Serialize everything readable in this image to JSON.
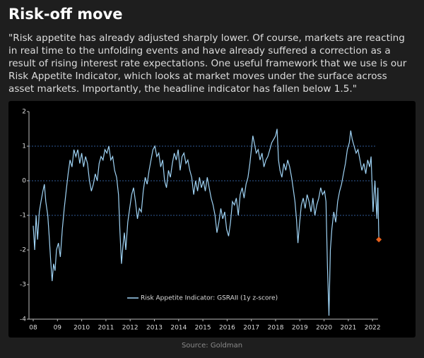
{
  "header": {
    "title": "Risk-off move"
  },
  "paragraph": [
    "\"Risk appetite has already adjusted sharply lower. Of course, markets are reacting",
    "in real time to the unfolding events and have already suffered a correction as a",
    "result of rising interest rate expectations. One useful framework that we use is our",
    "Risk Appetite Indicator, which looks at market moves under the surface across",
    "asset markets. Importantly, the headline indicator has fallen below 1.5.\""
  ],
  "source": "Source: Goldman",
  "chart_data": {
    "type": "line",
    "xlim": [
      2008,
      2023
    ],
    "ylim": [
      -4,
      2
    ],
    "xticks": [
      {
        "value": 2008,
        "label": "08"
      },
      {
        "value": 2009,
        "label": "09"
      },
      2010,
      2011,
      2012,
      2013,
      2014,
      2015,
      2016,
      2017,
      2018,
      2019,
      2020,
      2021,
      2022
    ],
    "yticks": [
      -4,
      -3,
      -2,
      -1,
      0,
      1,
      2
    ],
    "dashed_lines": [
      1,
      0,
      -1
    ],
    "series": [
      {
        "name": "Risk Appetite Indicator: GSRAII (1y z-score)",
        "color": "#9fd3f5",
        "marker_color": "#e8601c",
        "x": [
          2008.0,
          2008.06,
          2008.12,
          2008.18,
          2008.25,
          2008.32,
          2008.4,
          2008.46,
          2008.52,
          2008.6,
          2008.66,
          2008.72,
          2008.78,
          2008.84,
          2008.9,
          2008.96,
          2009.04,
          2009.12,
          2009.2,
          2009.28,
          2009.36,
          2009.44,
          2009.52,
          2009.6,
          2009.68,
          2009.76,
          2009.84,
          2009.92,
          2010.0,
          2010.08,
          2010.16,
          2010.24,
          2010.32,
          2010.4,
          2010.48,
          2010.56,
          2010.64,
          2010.72,
          2010.8,
          2010.88,
          2010.96,
          2011.04,
          2011.12,
          2011.2,
          2011.28,
          2011.36,
          2011.44,
          2011.52,
          2011.58,
          2011.64,
          2011.7,
          2011.76,
          2011.82,
          2011.9,
          2011.98,
          2012.06,
          2012.14,
          2012.22,
          2012.3,
          2012.38,
          2012.46,
          2012.54,
          2012.62,
          2012.7,
          2012.78,
          2012.86,
          2012.94,
          2013.02,
          2013.1,
          2013.18,
          2013.26,
          2013.34,
          2013.42,
          2013.5,
          2013.58,
          2013.66,
          2013.74,
          2013.82,
          2013.9,
          2013.98,
          2014.06,
          2014.14,
          2014.22,
          2014.3,
          2014.38,
          2014.46,
          2014.54,
          2014.62,
          2014.7,
          2014.78,
          2014.86,
          2014.94,
          2015.02,
          2015.1,
          2015.18,
          2015.26,
          2015.34,
          2015.42,
          2015.5,
          2015.58,
          2015.66,
          2015.74,
          2015.82,
          2015.9,
          2015.98,
          2016.06,
          2016.14,
          2016.22,
          2016.3,
          2016.38,
          2016.46,
          2016.54,
          2016.62,
          2016.7,
          2016.78,
          2016.86,
          2016.94,
          2017.0,
          2017.06,
          2017.12,
          2017.2,
          2017.28,
          2017.36,
          2017.44,
          2017.52,
          2017.6,
          2017.68,
          2017.76,
          2017.84,
          2017.92,
          2018.0,
          2018.06,
          2018.12,
          2018.18,
          2018.26,
          2018.34,
          2018.42,
          2018.5,
          2018.58,
          2018.66,
          2018.74,
          2018.8,
          2018.86,
          2018.92,
          2018.98,
          2019.06,
          2019.14,
          2019.22,
          2019.3,
          2019.38,
          2019.46,
          2019.54,
          2019.62,
          2019.7,
          2019.78,
          2019.86,
          2019.94,
          2020.02,
          2020.08,
          2020.14,
          2020.2,
          2020.26,
          2020.32,
          2020.4,
          2020.48,
          2020.56,
          2020.64,
          2020.72,
          2020.8,
          2020.88,
          2020.96,
          2021.04,
          2021.1,
          2021.16,
          2021.24,
          2021.32,
          2021.4,
          2021.48,
          2021.56,
          2021.64,
          2021.72,
          2021.8,
          2021.88,
          2021.94,
          2021.98,
          2022.02,
          2022.06,
          2022.1,
          2022.14,
          2022.18,
          2022.22,
          2022.26
        ],
        "values": [
          -1.3,
          -2.0,
          -1.0,
          -1.7,
          -0.9,
          -0.6,
          -0.3,
          -0.1,
          -0.6,
          -1.0,
          -1.6,
          -2.3,
          -2.9,
          -2.4,
          -2.6,
          -2.0,
          -1.8,
          -2.2,
          -1.4,
          -0.8,
          -0.3,
          0.2,
          0.6,
          0.4,
          0.9,
          0.7,
          0.9,
          0.5,
          0.8,
          0.4,
          0.7,
          0.5,
          0.0,
          -0.3,
          -0.1,
          0.2,
          0.0,
          0.5,
          0.7,
          0.6,
          0.9,
          0.8,
          1.0,
          0.6,
          0.7,
          0.3,
          0.1,
          -0.4,
          -1.5,
          -2.4,
          -1.9,
          -1.5,
          -2.0,
          -1.2,
          -0.8,
          -0.4,
          -0.2,
          -0.6,
          -1.1,
          -0.8,
          -0.9,
          -0.3,
          0.1,
          -0.1,
          0.3,
          0.6,
          0.9,
          1.0,
          0.7,
          0.8,
          0.4,
          0.6,
          0.0,
          -0.2,
          0.3,
          0.1,
          0.5,
          0.8,
          0.6,
          0.9,
          0.3,
          0.7,
          0.8,
          0.5,
          0.6,
          0.3,
          0.1,
          -0.4,
          0.0,
          -0.3,
          0.1,
          -0.2,
          0.0,
          -0.3,
          0.1,
          -0.2,
          -0.5,
          -0.7,
          -1.0,
          -1.5,
          -1.2,
          -0.8,
          -1.1,
          -0.9,
          -1.4,
          -1.6,
          -1.2,
          -0.6,
          -0.7,
          -0.5,
          -1.0,
          -0.4,
          -0.2,
          -0.5,
          -0.1,
          0.1,
          0.5,
          0.9,
          1.3,
          1.1,
          0.8,
          0.9,
          0.6,
          0.8,
          0.4,
          0.6,
          0.7,
          0.9,
          1.1,
          1.2,
          1.3,
          1.5,
          0.6,
          0.3,
          0.1,
          0.5,
          0.3,
          0.6,
          0.4,
          0.1,
          -0.3,
          -0.6,
          -1.1,
          -1.8,
          -1.3,
          -0.7,
          -0.5,
          -0.8,
          -0.4,
          -0.6,
          -0.9,
          -0.5,
          -1.0,
          -0.7,
          -0.5,
          -0.2,
          -0.4,
          -0.3,
          -0.6,
          -2.5,
          -3.9,
          -2.0,
          -1.4,
          -0.9,
          -1.2,
          -0.6,
          -0.3,
          -0.1,
          0.2,
          0.5,
          0.9,
          1.1,
          1.45,
          1.2,
          1.0,
          0.8,
          0.9,
          0.6,
          0.3,
          0.5,
          0.2,
          0.6,
          0.4,
          0.7,
          -0.1,
          -0.9,
          -0.4,
          0.0,
          -0.6,
          -1.1,
          -0.2,
          -1.7
        ]
      }
    ]
  }
}
